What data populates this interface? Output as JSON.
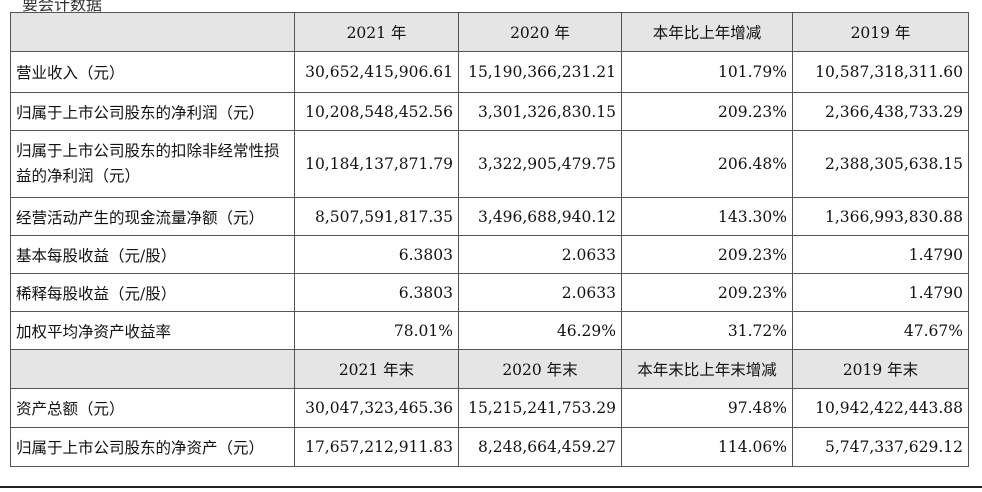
{
  "top_fragment": "要会计数据",
  "header_top": [
    "",
    "2021 年",
    "2020 年",
    "本年比上年增减",
    "2019 年"
  ],
  "rows_top": [
    {
      "label": "营业收入（元）",
      "values": [
        "30,652,415,906.61",
        "15,190,366,231.21",
        "101.79%",
        "10,587,318,311.60"
      ]
    },
    {
      "label": "归属于上市公司股东的净利润（元）",
      "values": [
        "10,208,548,452.56",
        "3,301,326,830.15",
        "209.23%",
        "2,366,438,733.29"
      ]
    },
    {
      "label": "归属于上市公司股东的扣除非经常性损益的净利润（元）",
      "values": [
        "10,184,137,871.79",
        "3,322,905,479.75",
        "206.48%",
        "2,388,305,638.15"
      ]
    },
    {
      "label": "经营活动产生的现金流量净额（元）",
      "values": [
        "8,507,591,817.35",
        "3,496,688,940.12",
        "143.30%",
        "1,366,993,830.88"
      ]
    },
    {
      "label": "基本每股收益（元/股）",
      "values": [
        "6.3803",
        "2.0633",
        "209.23%",
        "1.4790"
      ]
    },
    {
      "label": "稀释每股收益（元/股）",
      "values": [
        "6.3803",
        "2.0633",
        "209.23%",
        "1.4790"
      ]
    },
    {
      "label": "加权平均净资产收益率",
      "values": [
        "78.01%",
        "46.29%",
        "31.72%",
        "47.67%"
      ]
    }
  ],
  "header_bottom": [
    "",
    "2021 年末",
    "2020 年末",
    "本年末比上年末增减",
    "2019 年末"
  ],
  "rows_bottom": [
    {
      "label": "资产总额（元）",
      "values": [
        "30,047,323,465.36",
        "15,215,241,753.29",
        "97.48%",
        "10,942,422,443.88"
      ]
    },
    {
      "label": "归属于上市公司股东的净资产（元）",
      "values": [
        "17,657,212,911.83",
        "8,248,664,459.27",
        "114.06%",
        "5,747,337,629.12"
      ]
    }
  ]
}
